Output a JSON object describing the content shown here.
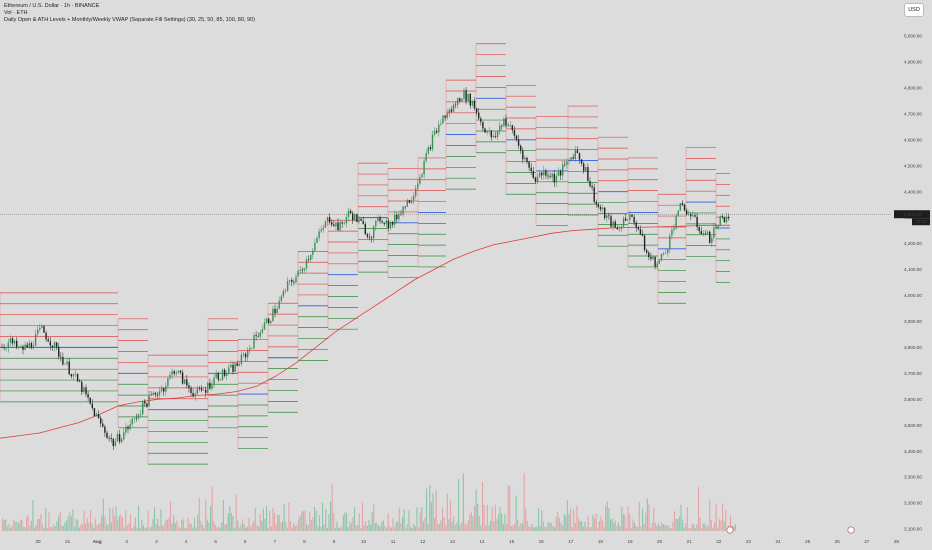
{
  "legend": {
    "symbol_line": "Ethereum / U.S. Dollar · 1h · BINANCE",
    "volume_line": "Vol · ETH",
    "indicator_line": "Daily Open & ATH Levels + Monthly/Weekly VWAP (Separate Fill Settings) (30, 25, 50, 85, 100, 80, 90)"
  },
  "currency_button": "USD",
  "price_axis": {
    "ticks": [
      "5,000.00",
      "4,900.00",
      "4,800.00",
      "4,700.00",
      "4,600.00",
      "4,500.00",
      "4,400.00",
      "4,300.00",
      "4,200.00",
      "4,100.00",
      "4,000.00",
      "3,900.00",
      "3,800.00",
      "3,700.00",
      "3,600.00",
      "3,500.00",
      "3,400.00",
      "3,300.00",
      "3,200.00",
      "3,100.00"
    ],
    "current_price": "4,313.13",
    "current_price_left": "ETH.USD",
    "countdown": "22:13"
  },
  "time_axis": {
    "ticks": [
      "30",
      "31",
      "Aug",
      "2",
      "3",
      "4",
      "5",
      "6",
      "7",
      "8",
      "9",
      "10",
      "11",
      "12",
      "13",
      "14",
      "15",
      "16",
      "17",
      "18",
      "19",
      "20",
      "21",
      "22",
      "23",
      "24",
      "25",
      "26",
      "27",
      "28"
    ]
  },
  "colors": {
    "background": "#dcdcdc",
    "level_red": "#e04a4a",
    "level_green": "#2e8b3a",
    "level_blue": "#2f5fe0",
    "vwap_line": "#e23b3b",
    "candle_up": "#3a8f55",
    "candle_down": "#222222",
    "volume_up": "#7fbfa2",
    "volume_down": "#e39a9a"
  },
  "chart_data": {
    "type": "candlestick",
    "title": "Ethereum / U.S. Dollar · 1h · BINANCE",
    "ylim": [
      3080,
      5080
    ],
    "x_dates": [
      "30",
      "31",
      "Aug",
      "2",
      "3",
      "4",
      "5",
      "6",
      "7",
      "8",
      "9",
      "10",
      "11",
      "12",
      "13",
      "14",
      "15",
      "16",
      "17",
      "18",
      "19",
      "20",
      "21",
      "22"
    ],
    "close_path": [
      3800,
      3820,
      3790,
      3810,
      3870,
      3820,
      3760,
      3700,
      3640,
      3560,
      3490,
      3430,
      3470,
      3520,
      3580,
      3620,
      3650,
      3720,
      3660,
      3620,
      3640,
      3690,
      3700,
      3730,
      3780,
      3850,
      3900,
      3960,
      4040,
      4080,
      4150,
      4230,
      4300,
      4260,
      4320,
      4280,
      4230,
      4300,
      4270,
      4330,
      4380,
      4480,
      4600,
      4680,
      4720,
      4780,
      4740,
      4650,
      4600,
      4680,
      4620,
      4530,
      4450,
      4480,
      4450,
      4500,
      4560,
      4480,
      4350,
      4300,
      4250,
      4310,
      4270,
      4150,
      4120,
      4200,
      4340,
      4320,
      4260,
      4220,
      4290,
      4313
    ],
    "vwap_series": [
      3450,
      3460,
      3470,
      3490,
      3510,
      3540,
      3575,
      3590,
      3600,
      3605,
      3615,
      3620,
      3630,
      3650,
      3690,
      3740,
      3800,
      3860,
      3910,
      3960,
      4010,
      4060,
      4100,
      4140,
      4170,
      4195,
      4210,
      4225,
      4240,
      4250,
      4255,
      4260,
      4262,
      4264,
      4266,
      4268,
      4270,
      4271
    ],
    "vwap_dates_span": [
      "30",
      "22"
    ],
    "price_axis_unit": "USD",
    "current_price": 4313.13
  }
}
